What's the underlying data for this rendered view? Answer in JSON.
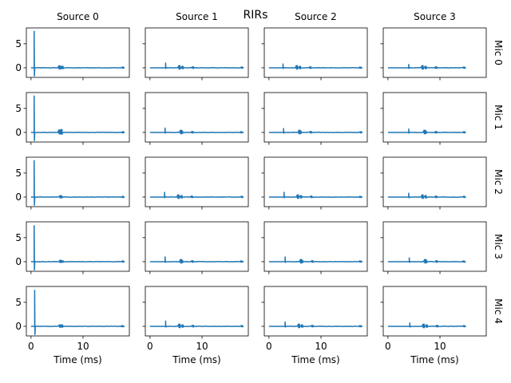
{
  "chart_data": {
    "type": "line",
    "title": "RIRs",
    "sources": [
      "Source 0",
      "Source 1",
      "Source 2",
      "Source 3"
    ],
    "mics": [
      "Mic 0",
      "Mic 1",
      "Mic 2",
      "Mic 3",
      "Mic 4"
    ],
    "xlabel": "Time (ms)",
    "xlim": [
      -0.9,
      18.9
    ],
    "ylim": [
      -2,
      8.3
    ],
    "xticks": [
      0,
      10
    ],
    "yticks": [
      0,
      5
    ],
    "line_color": "#1f77b4",
    "grid": false,
    "direct_peaks": [
      [
        7.6,
        1.0,
        0.8,
        0.7
      ],
      [
        7.6,
        0.9,
        0.8,
        0.7
      ],
      [
        7.6,
        1.0,
        1.0,
        0.8
      ],
      [
        7.5,
        1.0,
        1.0,
        0.8
      ],
      [
        7.5,
        1.1,
        0.9,
        0.7
      ]
    ],
    "direct_times": [
      [
        0.6,
        3.0,
        2.7,
        4.0
      ],
      [
        0.6,
        2.9,
        2.8,
        4.0
      ],
      [
        0.6,
        2.8,
        2.9,
        4.0
      ],
      [
        0.6,
        2.9,
        3.1,
        4.1
      ],
      [
        0.7,
        3.0,
        3.1,
        4.2
      ]
    ],
    "end_times": [
      18.0,
      18.0,
      18.0,
      15.0
    ],
    "reflections": [
      [
        [
          5.5,
          0.4
        ],
        [
          5.8,
          0.3
        ],
        [
          6.1,
          0.3
        ],
        [
          17.6,
          0.15
        ]
      ],
      [
        [
          5.5,
          0.5
        ],
        [
          5.9,
          0.6
        ],
        [
          17.6,
          0.15
        ]
      ],
      [
        [
          5.6,
          0.3
        ],
        [
          5.9,
          0.2
        ],
        [
          17.6,
          0.15
        ]
      ],
      [
        [
          5.7,
          0.3
        ],
        [
          6.0,
          0.2
        ],
        [
          17.6,
          0.15
        ]
      ],
      [
        [
          5.6,
          0.3
        ],
        [
          6.0,
          0.3
        ],
        [
          17.6,
          0.15
        ]
      ]
    ]
  }
}
